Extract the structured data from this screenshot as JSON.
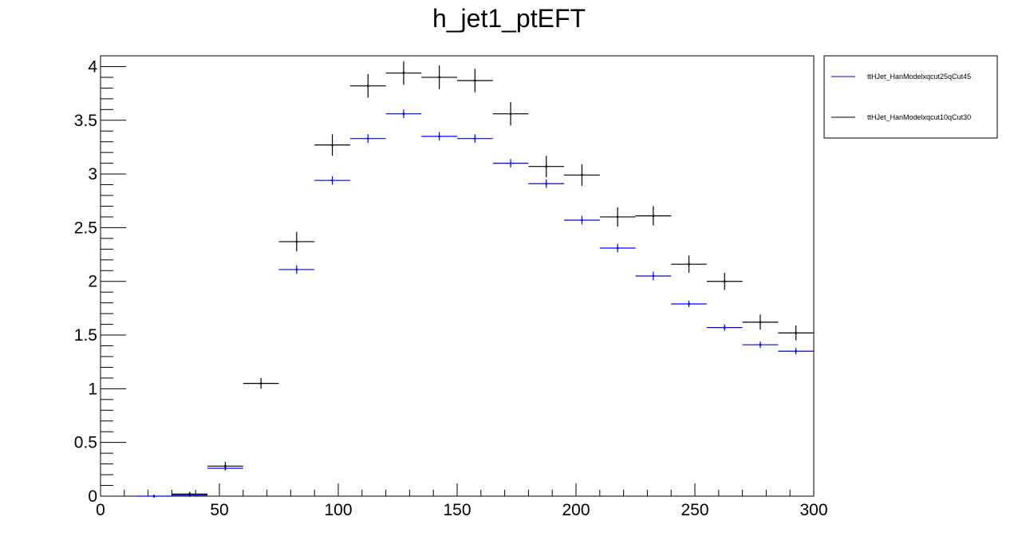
{
  "chart_data": {
    "type": "scatter",
    "title": "h_jet1_ptEFT",
    "xlabel": "",
    "ylabel": "",
    "xlim": [
      0,
      300
    ],
    "ylim": [
      0,
      4.1
    ],
    "x_ticks": [
      0,
      50,
      100,
      150,
      200,
      250,
      300
    ],
    "y_ticks": [
      0,
      0.5,
      1,
      1.5,
      2,
      2.5,
      3,
      3.5,
      4
    ],
    "x_tick_labels": [
      "0",
      "50",
      "100",
      "150",
      "200",
      "250",
      "300"
    ],
    "y_tick_labels": [
      "0",
      "0.5",
      "1",
      "1.5",
      "2",
      "2.5",
      "3",
      "3.5",
      "4"
    ],
    "grid": false,
    "legend_position": "top-right, outside plot",
    "bin_width": 15,
    "series": [
      {
        "name": "ttHJet_HanModelxqcut25qCut45",
        "color": "#0000ff",
        "points": [
          {
            "x": 22.5,
            "y": 0.0,
            "err": 0.0
          },
          {
            "x": 37.5,
            "y": 0.01,
            "err": 0.005
          },
          {
            "x": 52.5,
            "y": 0.26,
            "err": 0.02
          },
          {
            "x": 82.5,
            "y": 2.11,
            "err": 0.04
          },
          {
            "x": 97.5,
            "y": 2.94,
            "err": 0.04
          },
          {
            "x": 112.5,
            "y": 3.33,
            "err": 0.04
          },
          {
            "x": 127.5,
            "y": 3.56,
            "err": 0.04
          },
          {
            "x": 142.5,
            "y": 3.35,
            "err": 0.04
          },
          {
            "x": 157.5,
            "y": 3.33,
            "err": 0.04
          },
          {
            "x": 172.5,
            "y": 3.1,
            "err": 0.04
          },
          {
            "x": 187.5,
            "y": 2.91,
            "err": 0.04
          },
          {
            "x": 202.5,
            "y": 2.57,
            "err": 0.04
          },
          {
            "x": 217.5,
            "y": 2.31,
            "err": 0.04
          },
          {
            "x": 232.5,
            "y": 2.05,
            "err": 0.04
          },
          {
            "x": 247.5,
            "y": 1.79,
            "err": 0.03
          },
          {
            "x": 262.5,
            "y": 1.57,
            "err": 0.03
          },
          {
            "x": 277.5,
            "y": 1.41,
            "err": 0.03
          },
          {
            "x": 292.5,
            "y": 1.35,
            "err": 0.03
          }
        ]
      },
      {
        "name": "ttHJet_HanModelxqcut10qCut30",
        "color": "#000000",
        "points": [
          {
            "x": 37.5,
            "y": 0.02,
            "err": 0.02
          },
          {
            "x": 52.5,
            "y": 0.28,
            "err": 0.04
          },
          {
            "x": 67.5,
            "y": 1.05,
            "err": 0.05
          },
          {
            "x": 82.5,
            "y": 2.37,
            "err": 0.09
          },
          {
            "x": 97.5,
            "y": 3.27,
            "err": 0.1
          },
          {
            "x": 112.5,
            "y": 3.82,
            "err": 0.11
          },
          {
            "x": 127.5,
            "y": 3.94,
            "err": 0.11
          },
          {
            "x": 142.5,
            "y": 3.9,
            "err": 0.11
          },
          {
            "x": 157.5,
            "y": 3.87,
            "err": 0.11
          },
          {
            "x": 172.5,
            "y": 3.56,
            "err": 0.11
          },
          {
            "x": 187.5,
            "y": 3.07,
            "err": 0.1
          },
          {
            "x": 202.5,
            "y": 2.99,
            "err": 0.1
          },
          {
            "x": 217.5,
            "y": 2.6,
            "err": 0.09
          },
          {
            "x": 232.5,
            "y": 2.61,
            "err": 0.09
          },
          {
            "x": 247.5,
            "y": 2.16,
            "err": 0.08
          },
          {
            "x": 262.5,
            "y": 2.0,
            "err": 0.08
          },
          {
            "x": 277.5,
            "y": 1.62,
            "err": 0.07
          },
          {
            "x": 292.5,
            "y": 1.52,
            "err": 0.07
          }
        ]
      }
    ]
  }
}
